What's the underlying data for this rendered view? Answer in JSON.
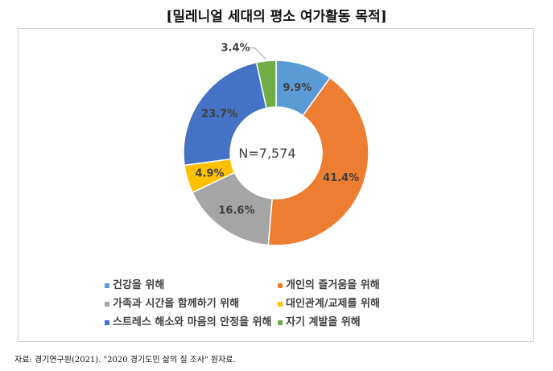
{
  "chart_data": {
    "type": "pie",
    "donut": true,
    "title": "[밀레니얼 세대의 평소 여가활동 목적]",
    "center_label": "N=7,574",
    "slices": [
      {
        "label": "건강을 위해",
        "value": 9.9,
        "display": "9.9%",
        "color": "#5B9BD5"
      },
      {
        "label": "개인의 즐거움을 위해",
        "value": 41.4,
        "display": "41.4%",
        "color": "#ED7D31"
      },
      {
        "label": "가족과 시간을 함께하기 위해",
        "value": 16.6,
        "display": "16.6%",
        "color": "#A5A5A5"
      },
      {
        "label": "대인관계/교제를 위해",
        "value": 4.9,
        "display": "4.9%",
        "color": "#FFC000"
      },
      {
        "label": "스트레스 해소와 마음의 안정을 위해",
        "value": 23.7,
        "display": "23.7%",
        "color": "#4472C4"
      },
      {
        "label": "자기 계발을 위해",
        "value": 3.4,
        "display": "3.4%",
        "color": "#70AD47"
      }
    ],
    "legend_position": "bottom"
  },
  "source": "자료: 경기연구원(2021). \"2020 경기도민 삶의 질 조사\" 원자료."
}
